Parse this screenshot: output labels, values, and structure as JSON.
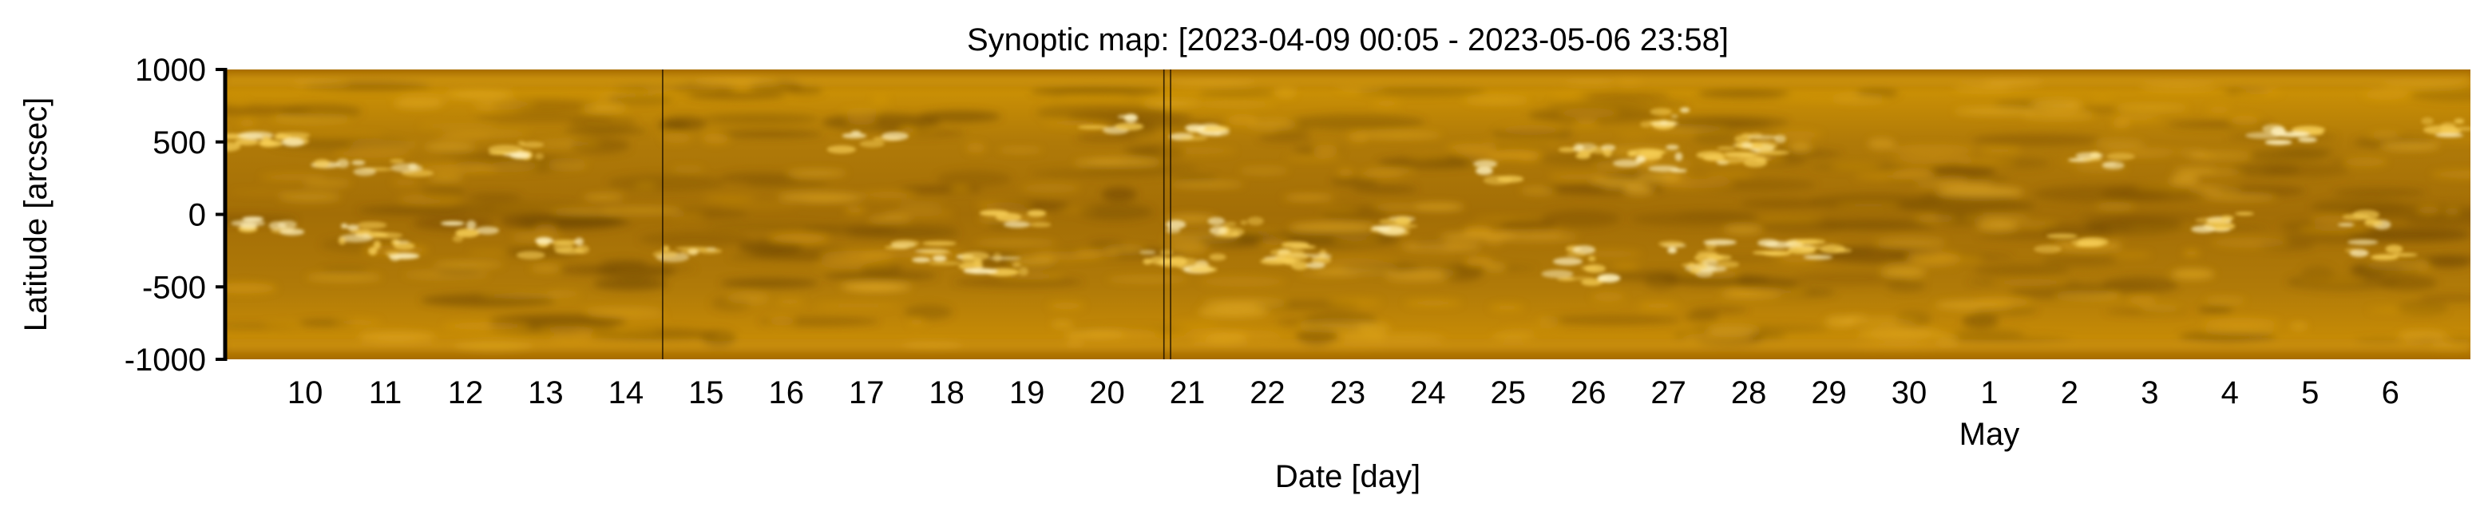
{
  "chart_data": {
    "type": "heatmap",
    "title": "Synoptic map: [2023-04-09 00:05 - 2023-05-06 23:58]",
    "xlabel": "Date [day]",
    "ylabel": "Latitude [arcsec]",
    "x_range": [
      "2023-04-09 00:05",
      "2023-05-06 23:58"
    ],
    "ylim": [
      -1000,
      1000
    ],
    "y_ticks": [
      1000,
      500,
      0,
      -500,
      -1000
    ],
    "y_tick_labels": [
      "1000",
      "500",
      "0",
      "-500",
      "-1000"
    ],
    "x_ticks": [
      "2023-04-10",
      "2023-04-11",
      "2023-04-12",
      "2023-04-13",
      "2023-04-14",
      "2023-04-15",
      "2023-04-16",
      "2023-04-17",
      "2023-04-18",
      "2023-04-19",
      "2023-04-20",
      "2023-04-21",
      "2023-04-22",
      "2023-04-23",
      "2023-04-24",
      "2023-04-25",
      "2023-04-26",
      "2023-04-27",
      "2023-04-28",
      "2023-04-29",
      "2023-04-30",
      "2023-05-01",
      "2023-05-02",
      "2023-05-03",
      "2023-05-04",
      "2023-05-05",
      "2023-05-06"
    ],
    "x_tick_labels": [
      "10",
      "11",
      "12",
      "13",
      "14",
      "15",
      "16",
      "17",
      "18",
      "19",
      "20",
      "21",
      "22",
      "23",
      "24",
      "25",
      "26",
      "27",
      "28",
      "29",
      "30",
      "1",
      "2",
      "3",
      "4",
      "5",
      "6"
    ],
    "x_secondary_label": "May",
    "x_secondary_label_date": "2023-05-01",
    "data_gaps": [
      "2023-04-14 11:00",
      "2023-04-20 17:00",
      "2023-04-20 19:00"
    ],
    "colormap": "solar EUV (black - brown - gold - white)",
    "grid": false,
    "legend": "none"
  }
}
